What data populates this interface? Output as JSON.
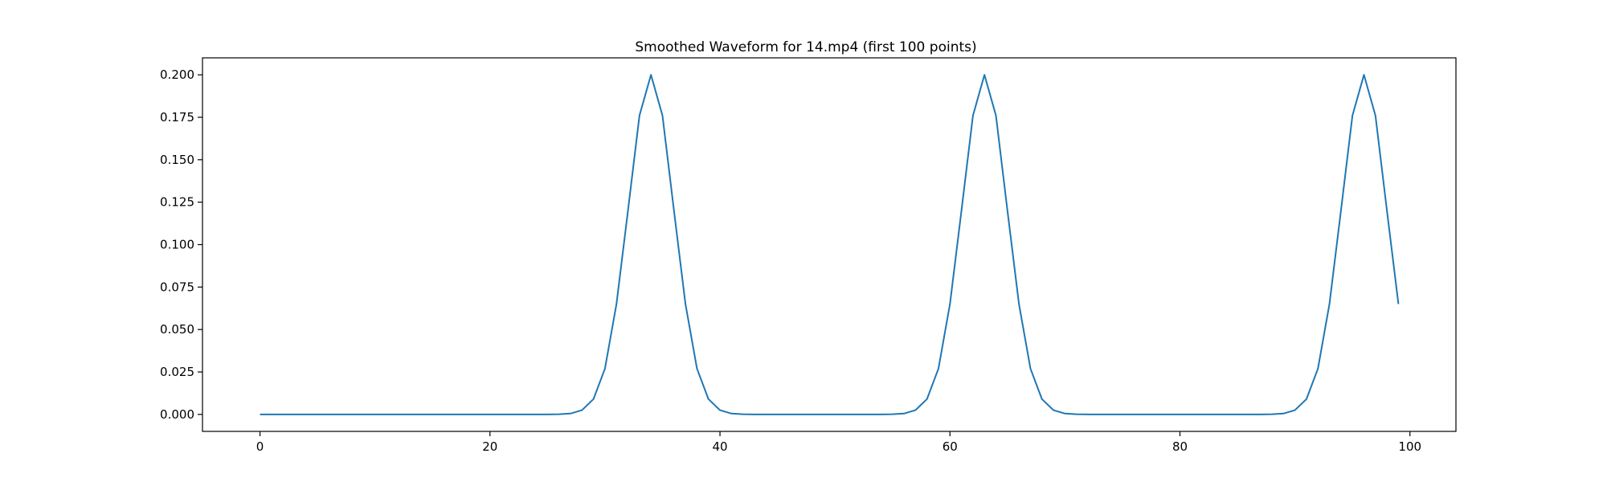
{
  "chart_data": {
    "type": "line",
    "title": "Smoothed Waveform for 14.mp4 (first 100 points)",
    "xlabel": "",
    "ylabel": "",
    "xlim": [
      -5,
      104
    ],
    "ylim": [
      -0.01,
      0.21
    ],
    "xticks": [
      0,
      20,
      40,
      60,
      80,
      100
    ],
    "xtick_labels": [
      "0",
      "20",
      "40",
      "60",
      "80",
      "100"
    ],
    "yticks": [
      0.0,
      0.025,
      0.05,
      0.075,
      0.1,
      0.125,
      0.15,
      0.175,
      0.2
    ],
    "ytick_labels": [
      "0.000",
      "0.025",
      "0.050",
      "0.075",
      "0.100",
      "0.125",
      "0.150",
      "0.175",
      "0.200"
    ],
    "grid": false,
    "legend": "none",
    "series": [
      {
        "color": "#1f77b4",
        "x": [
          0,
          1,
          2,
          3,
          4,
          5,
          6,
          7,
          8,
          9,
          10,
          11,
          12,
          13,
          14,
          15,
          16,
          17,
          18,
          19,
          20,
          21,
          22,
          23,
          24,
          25,
          26,
          27,
          28,
          29,
          30,
          31,
          32,
          33,
          34,
          35,
          36,
          37,
          38,
          39,
          40,
          41,
          42,
          43,
          44,
          45,
          46,
          47,
          48,
          49,
          50,
          51,
          52,
          53,
          54,
          55,
          56,
          57,
          58,
          59,
          60,
          61,
          62,
          63,
          64,
          65,
          66,
          67,
          68,
          69,
          70,
          71,
          72,
          73,
          74,
          75,
          76,
          77,
          78,
          79,
          80,
          81,
          82,
          83,
          84,
          85,
          86,
          87,
          88,
          89,
          90,
          91,
          92,
          93,
          94,
          95,
          96,
          97,
          98,
          99
        ],
        "y": [
          0,
          0,
          0,
          0,
          0,
          0,
          0,
          0,
          0,
          0,
          0,
          0,
          0,
          0,
          0,
          0,
          0,
          0,
          0,
          0,
          0,
          0,
          0,
          0,
          0,
          0,
          0.0001,
          0.0005,
          0.0025,
          0.009,
          0.027,
          0.065,
          0.12,
          0.176,
          0.2,
          0.176,
          0.12,
          0.065,
          0.027,
          0.009,
          0.0025,
          0.0005,
          0.0001,
          0,
          0,
          0,
          0,
          0,
          0,
          0,
          0,
          0,
          0,
          0,
          0,
          0.0001,
          0.0005,
          0.0025,
          0.009,
          0.027,
          0.065,
          0.12,
          0.176,
          0.2,
          0.176,
          0.12,
          0.065,
          0.027,
          0.009,
          0.0025,
          0.0005,
          0.0001,
          0,
          0,
          0,
          0,
          0,
          0,
          0,
          0,
          0,
          0,
          0,
          0,
          0,
          0,
          0,
          0,
          0.0001,
          0.0005,
          0.0025,
          0.009,
          0.027,
          0.065,
          0.12,
          0.176,
          0.2,
          0.176,
          0.12,
          0.065
        ]
      }
    ]
  }
}
